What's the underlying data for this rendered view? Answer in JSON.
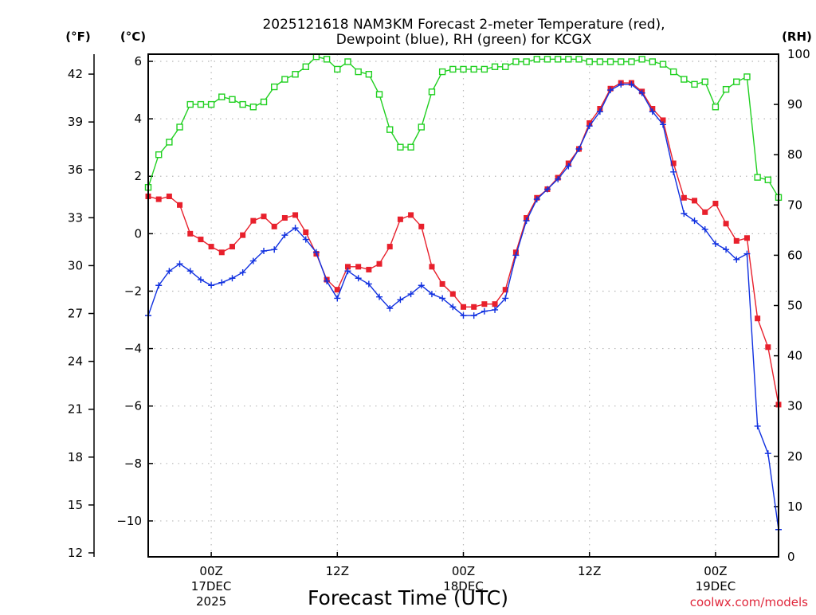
{
  "chart_data": {
    "type": "line",
    "title_line1": "2025121618 NAM3KM Forecast 2-meter Temperature (red),",
    "title_line2": "Dewpoint (blue), RH (green) for KCGX",
    "xlabel": "Forecast Time (UTC)",
    "credit": "coolwx.com/models",
    "units": {
      "left_f": "(°F)",
      "left_c": "(°C)",
      "right_rh": "(RH)"
    },
    "x_range_hours": [
      0,
      60
    ],
    "y_range_c": [
      -11.25,
      6.25
    ],
    "y_range_rh": [
      0,
      100
    ],
    "celsius_ticks": [
      "6",
      "4",
      "2",
      "0",
      "−2",
      "−4",
      "−6",
      "−8",
      "−10"
    ],
    "fahrenheit_ticks": [
      "42",
      "39",
      "36",
      "33",
      "30",
      "27",
      "24",
      "21",
      "18",
      "15",
      "12"
    ],
    "rh_ticks": [
      "100",
      "90",
      "80",
      "70",
      "60",
      "50",
      "40",
      "30",
      "20",
      "10",
      "0"
    ],
    "x_ticks": [
      {
        "hour": 6,
        "line1": "00Z",
        "line2": "17DEC",
        "line3": "2025"
      },
      {
        "hour": 18,
        "line1": "12Z",
        "line2": "",
        "line3": ""
      },
      {
        "hour": 30,
        "line1": "00Z",
        "line2": "18DEC",
        "line3": ""
      },
      {
        "hour": 42,
        "line1": "12Z",
        "line2": "",
        "line3": ""
      },
      {
        "hour": 54,
        "line1": "00Z",
        "line2": "19DEC",
        "line3": ""
      }
    ],
    "series": [
      {
        "name": "Temperature (°C)",
        "color": "#e8202c",
        "marker": "filled-square",
        "axis": "celsius",
        "values": [
          1.3,
          1.2,
          1.3,
          1.0,
          0.0,
          -0.2,
          -0.45,
          -0.65,
          -0.45,
          -0.05,
          0.45,
          0.6,
          0.25,
          0.55,
          0.65,
          0.05,
          -0.7,
          -1.6,
          -1.95,
          -1.15,
          -1.15,
          -1.25,
          -1.05,
          -0.45,
          0.5,
          0.65,
          0.25,
          -1.15,
          -1.75,
          -2.1,
          -2.55,
          -2.55,
          -2.45,
          -2.45,
          -1.95,
          -0.65,
          0.55,
          1.25,
          1.55,
          1.95,
          2.45,
          2.95,
          3.85,
          4.35,
          5.05,
          5.25,
          5.25,
          4.95,
          4.35,
          3.95,
          2.45,
          1.25,
          1.15,
          0.75,
          1.05,
          0.35,
          -0.25,
          -0.15,
          -2.95,
          -3.95,
          -5.95
        ]
      },
      {
        "name": "Dewpoint (°C)",
        "color": "#1030e0",
        "marker": "plus",
        "axis": "celsius",
        "values": [
          -2.85,
          -1.8,
          -1.3,
          -1.05,
          -1.3,
          -1.6,
          -1.8,
          -1.7,
          -1.55,
          -1.35,
          -0.95,
          -0.6,
          -0.55,
          -0.05,
          0.2,
          -0.2,
          -0.65,
          -1.65,
          -2.25,
          -1.3,
          -1.55,
          -1.75,
          -2.2,
          -2.6,
          -2.3,
          -2.1,
          -1.8,
          -2.1,
          -2.25,
          -2.55,
          -2.85,
          -2.85,
          -2.7,
          -2.65,
          -2.25,
          -0.75,
          0.45,
          1.2,
          1.55,
          1.9,
          2.35,
          2.95,
          3.75,
          4.25,
          5.0,
          5.2,
          5.2,
          4.9,
          4.25,
          3.8,
          2.15,
          0.7,
          0.45,
          0.15,
          -0.35,
          -0.55,
          -0.9,
          -0.7,
          -6.7,
          -7.65,
          -10.3
        ]
      },
      {
        "name": "RH (%)",
        "color": "#20d020",
        "marker": "open-square",
        "axis": "rh",
        "values": [
          73.5,
          80,
          82.5,
          85.5,
          90,
          90,
          90,
          91.5,
          91,
          90,
          89.5,
          90.5,
          93.5,
          95,
          96,
          97.5,
          99.5,
          99,
          97,
          98.5,
          96.5,
          96,
          92,
          85,
          81.5,
          81.5,
          85.5,
          92.5,
          96.5,
          97,
          97,
          97,
          97,
          97.5,
          97.5,
          98.5,
          98.5,
          99,
          99,
          99,
          99,
          99,
          98.5,
          98.5,
          98.5,
          98.5,
          98.5,
          99,
          98.5,
          98,
          96.5,
          95,
          94,
          94.5,
          89.5,
          93,
          94.5,
          95.5,
          75.5,
          75,
          71.5
        ]
      }
    ]
  }
}
